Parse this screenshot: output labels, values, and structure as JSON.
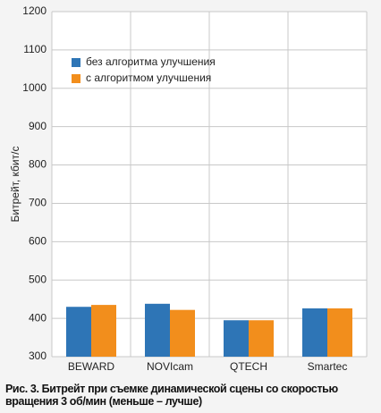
{
  "chart_data": {
    "type": "bar",
    "title": "Рис. 3. Битрейт при съемке динамической сцены со скоростью вращения 3 об/мин (меньше – лучше)",
    "y_label": "Битрейт, кбит/с",
    "categories": [
      "BEWARD",
      "NOVIcam",
      "QTECH",
      "Smartec"
    ],
    "series": [
      {
        "name": "без алгоритма улучшения",
        "color": "#2e75b6",
        "values": [
          430,
          438,
          395,
          426
        ]
      },
      {
        "name": "с алгоритмом улучшения",
        "color": "#f28e1c",
        "values": [
          435,
          422,
          395,
          426
        ]
      }
    ],
    "ylim": [
      300,
      1200
    ],
    "yticks": [
      300,
      400,
      500,
      600,
      700,
      800,
      900,
      1000,
      1100,
      1200
    ],
    "grid": true,
    "legend": "upper-left"
  }
}
